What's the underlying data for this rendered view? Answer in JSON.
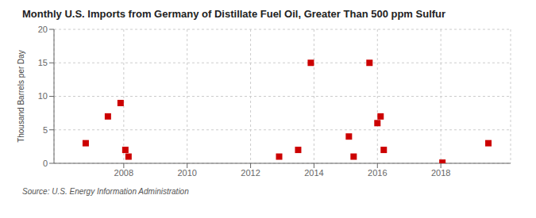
{
  "chart_data": {
    "type": "scatter",
    "title": "Monthly U.S. Imports from Germany of Distillate Fuel Oil, Greater Than 500 ppm Sulfur",
    "ylabel": "Thousand Barrels per Day",
    "source": "Source: U.S. Energy Information Administration",
    "x": [
      2006.8,
      2007.5,
      2007.9,
      2008.05,
      2008.15,
      2012.9,
      2013.5,
      2013.9,
      2015.1,
      2015.25,
      2015.75,
      2016.0,
      2016.1,
      2016.2,
      2018.05,
      2019.5
    ],
    "values": [
      3.0,
      7.0,
      9.0,
      2.0,
      1.0,
      1.0,
      2.0,
      15.0,
      4.0,
      1.0,
      15.0,
      6.0,
      7.0,
      2.0,
      0.1,
      3.0
    ],
    "color": "#cc0000",
    "marker": "square",
    "xlim": [
      2005.8,
      2020.2
    ],
    "xticks": [
      2008,
      2010,
      2012,
      2014,
      2016,
      2018
    ],
    "ylim": [
      0,
      20
    ],
    "yticks": [
      0,
      5,
      10,
      15,
      20
    ],
    "grid": true
  }
}
